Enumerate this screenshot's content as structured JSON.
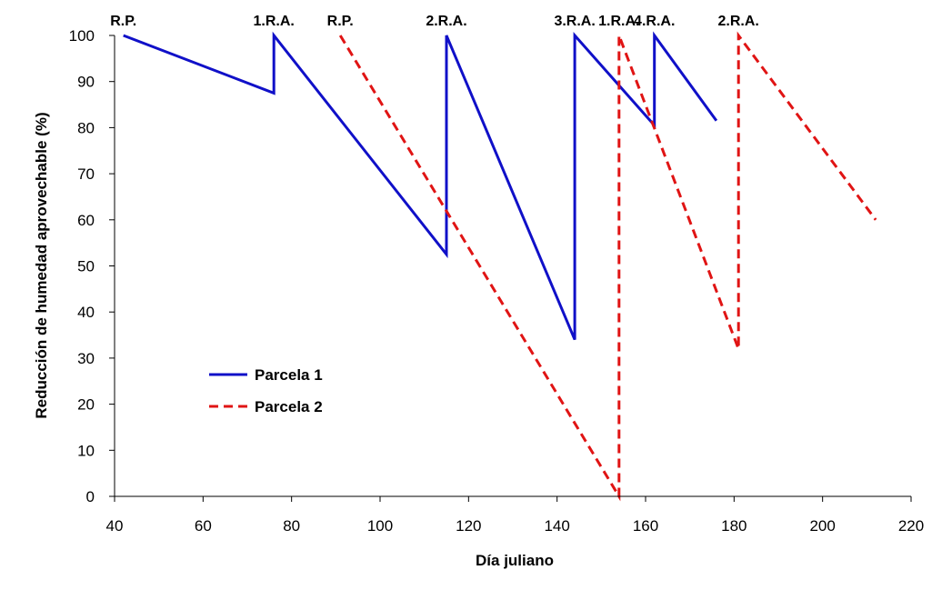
{
  "chart_data": {
    "type": "line",
    "xlabel": "Día juliano",
    "ylabel": "Reducción de humedad aprovechable (%)",
    "xlim": [
      40,
      220
    ],
    "ylim": [
      0,
      100
    ],
    "x_ticks": [
      40,
      60,
      80,
      100,
      120,
      140,
      160,
      180,
      200,
      220
    ],
    "y_ticks": [
      0,
      10,
      20,
      30,
      40,
      50,
      60,
      70,
      80,
      90,
      100
    ],
    "grid": false,
    "legend_position": "bottom-left",
    "series": [
      {
        "name": "Parcela 1",
        "color": "#1010c8",
        "style": "solid",
        "points": [
          [
            42,
            100
          ],
          [
            76,
            87.5
          ],
          [
            76,
            100
          ],
          [
            115,
            52.5
          ],
          [
            115,
            100
          ],
          [
            144,
            34
          ],
          [
            144,
            100
          ],
          [
            162,
            80.5
          ],
          [
            162,
            100
          ],
          [
            176,
            81.5
          ]
        ]
      },
      {
        "name": "Parcela 2",
        "color": "#e01414",
        "style": "dashed",
        "points": [
          [
            91,
            100
          ],
          [
            154,
            0
          ],
          [
            154,
            100
          ],
          [
            181,
            32
          ],
          [
            181,
            100
          ],
          [
            212,
            60
          ]
        ]
      }
    ],
    "annotations": [
      {
        "text": "R.P.",
        "x": 42
      },
      {
        "text": "1.R.A.",
        "x": 76
      },
      {
        "text": "R.P.",
        "x": 91
      },
      {
        "text": "2.R.A.",
        "x": 115
      },
      {
        "text": "3.R.A.",
        "x": 144
      },
      {
        "text": "1.R.A.",
        "x": 154
      },
      {
        "text": "4.R.A.",
        "x": 162
      },
      {
        "text": "2.R.A.",
        "x": 181
      }
    ]
  }
}
